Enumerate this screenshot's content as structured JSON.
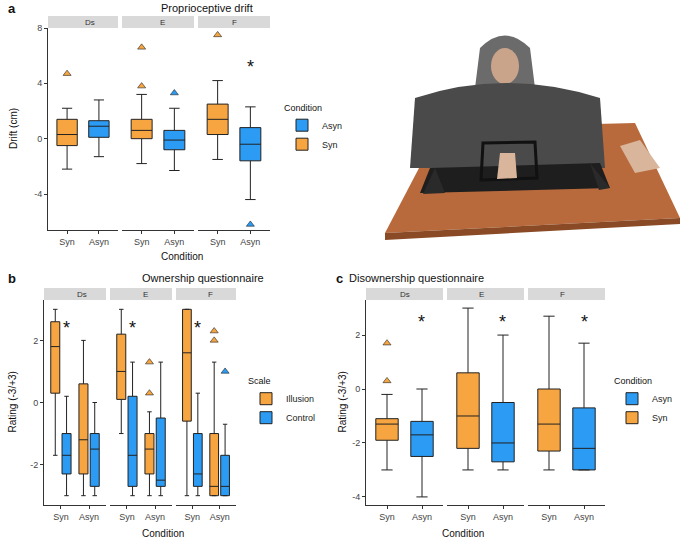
{
  "chart_data": [
    {
      "type": "box",
      "label": "a",
      "title": "Proprioceptive drift",
      "x_label": "Condition",
      "y_label": "Drift (cm)",
      "ylim": [
        -6.6,
        8
      ],
      "yticks": [
        -4,
        0,
        4,
        8
      ],
      "grid": false,
      "legend": "right",
      "legend_title": "Condition",
      "marker": "triangle-up",
      "series": [
        {
          "name": "Asyn",
          "color": "#2B9BF4"
        },
        {
          "name": "Syn",
          "color": "#F7A541"
        }
      ],
      "facets": [
        {
          "name": "Ds",
          "categories": [
            "Syn",
            "Asyn"
          ],
          "series": [
            {
              "name": "Asyn",
              "values": [
                null,
                {
                  "q1": 0.1,
                  "median": 0.9,
                  "q3": 1.3,
                  "lower": -1.3,
                  "upper": 2.8,
                  "outliers": []
                }
              ]
            },
            {
              "name": "Syn",
              "values": [
                {
                  "q1": -0.5,
                  "median": 0.3,
                  "q3": 1.4,
                  "lower": -2.2,
                  "upper": 2.2,
                  "outliers": [
                    4.7
                  ]
                },
                null
              ]
            }
          ],
          "annotations": []
        },
        {
          "name": "E",
          "categories": [
            "Syn",
            "Asyn"
          ],
          "series": [
            {
              "name": "Asyn",
              "values": [
                null,
                {
                  "q1": -0.8,
                  "median": -0.1,
                  "q3": 0.6,
                  "lower": -2.3,
                  "upper": 2.2,
                  "outliers": [
                    3.3
                  ]
                }
              ]
            },
            {
              "name": "Syn",
              "values": [
                {
                  "q1": 0,
                  "median": 0.6,
                  "q3": 1.4,
                  "lower": -1.8,
                  "upper": 3.2,
                  "outliers": [
                    3.8,
                    6.6
                  ]
                },
                null
              ]
            }
          ],
          "annotations": []
        },
        {
          "name": "F",
          "categories": [
            "Syn",
            "Asyn"
          ],
          "series": [
            {
              "name": "Asyn",
              "values": [
                null,
                {
                  "q1": -1.6,
                  "median": -0.4,
                  "q3": 0.8,
                  "lower": -4.4,
                  "upper": 2.3,
                  "outliers": [
                    -6.2
                  ]
                }
              ]
            },
            {
              "name": "Syn",
              "values": [
                {
                  "q1": 0.3,
                  "median": 1.4,
                  "q3": 2.5,
                  "lower": -1.5,
                  "upper": 4.2,
                  "outliers": [
                    7.5
                  ]
                },
                null
              ]
            }
          ],
          "annotations": [
            {
              "text": "*",
              "x": "Asyn",
              "y": 5.2
            }
          ]
        }
      ]
    },
    {
      "type": "box",
      "label": "b",
      "title": "Ownership questionnaire",
      "x_label": "Condition",
      "y_label": "Rating (-3/+3)",
      "ylim": [
        -3.3,
        3.3
      ],
      "yticks": [
        -2,
        0,
        2
      ],
      "grid": false,
      "legend": "right",
      "legend_title": "Scale",
      "marker": "triangle-up",
      "series": [
        {
          "name": "Illusion",
          "color": "#F7A541"
        },
        {
          "name": "Control",
          "color": "#2B9BF4"
        }
      ],
      "facets": [
        {
          "name": "Ds",
          "categories": [
            "Syn",
            "Asyn"
          ],
          "series": [
            {
              "name": "Illusion",
              "values": [
                {
                  "q1": 0.3,
                  "median": 1.8,
                  "q3": 2.6,
                  "lower": -1.7,
                  "upper": 3,
                  "outliers": []
                },
                {
                  "q1": -2.3,
                  "median": -1.2,
                  "q3": 0.6,
                  "lower": -3,
                  "upper": 2,
                  "outliers": []
                }
              ]
            },
            {
              "name": "Control",
              "values": [
                {
                  "q1": -2.3,
                  "median": -1.7,
                  "q3": -1,
                  "lower": -3,
                  "upper": 0.2,
                  "outliers": []
                },
                {
                  "q1": -2.7,
                  "median": -1.5,
                  "q3": -1,
                  "lower": -3,
                  "upper": 0,
                  "outliers": []
                }
              ]
            }
          ],
          "annotations": [
            {
              "text": "*",
              "x": "Syn",
              "series": "Control",
              "y": 2.4
            }
          ]
        },
        {
          "name": "E",
          "categories": [
            "Syn",
            "Asyn"
          ],
          "series": [
            {
              "name": "Illusion",
              "values": [
                {
                  "q1": 0.1,
                  "median": 1,
                  "q3": 2.2,
                  "lower": -1,
                  "upper": 3,
                  "outliers": []
                },
                {
                  "q1": -2.3,
                  "median": -1.5,
                  "q3": -1,
                  "lower": -3,
                  "upper": -0.3,
                  "outliers": [
                    1.3,
                    0.3
                  ]
                }
              ]
            },
            {
              "name": "Control",
              "values": [
                {
                  "q1": -2.7,
                  "median": -1.7,
                  "q3": 0.2,
                  "lower": -3,
                  "upper": 1.3,
                  "outliers": []
                },
                {
                  "q1": -2.7,
                  "median": -2.5,
                  "q3": -0.5,
                  "lower": -3,
                  "upper": 1.3,
                  "outliers": []
                }
              ]
            }
          ],
          "annotations": [
            {
              "text": "*",
              "x": "Syn",
              "series": "Control",
              "y": 2.4
            }
          ]
        },
        {
          "name": "F",
          "categories": [
            "Syn",
            "Asyn"
          ],
          "series": [
            {
              "name": "Illusion",
              "values": [
                {
                  "q1": -0.6,
                  "median": 1.6,
                  "q3": 3,
                  "lower": -3,
                  "upper": 3,
                  "outliers": []
                },
                {
                  "q1": -3,
                  "median": -2.7,
                  "q3": -1,
                  "lower": -3,
                  "upper": 1.3,
                  "outliers": [
                    2.3,
                    2
                  ]
                }
              ]
            },
            {
              "name": "Control",
              "values": [
                {
                  "q1": -2.7,
                  "median": -2.3,
                  "q3": -1,
                  "lower": -3,
                  "upper": 0.3,
                  "outliers": []
                },
                {
                  "q1": -3,
                  "median": -2.7,
                  "q3": -1.7,
                  "lower": -3,
                  "upper": -0.7,
                  "outliers": [
                    1
                  ]
                }
              ]
            }
          ],
          "annotations": [
            {
              "text": "*",
              "x": "Syn",
              "series": "Control",
              "y": 2.4
            }
          ]
        }
      ]
    },
    {
      "type": "box",
      "label": "c",
      "title": "Disownership questionnaire",
      "x_label": "Condition",
      "y_label": "Rating (-3/+3)",
      "ylim": [
        -4.3,
        3.3
      ],
      "yticks": [
        -4,
        -2,
        0,
        2
      ],
      "grid": false,
      "legend": "right",
      "legend_title": "Condition",
      "marker": "triangle-up",
      "series": [
        {
          "name": "Asyn",
          "color": "#2B9BF4"
        },
        {
          "name": "Syn",
          "color": "#F7A541"
        }
      ],
      "facets": [
        {
          "name": "Ds",
          "categories": [
            "Syn",
            "Asyn"
          ],
          "series": [
            {
              "name": "Asyn",
              "values": [
                null,
                {
                  "q1": -2.5,
                  "median": -1.7,
                  "q3": -1.2,
                  "lower": -4,
                  "upper": 0,
                  "outliers": []
                }
              ]
            },
            {
              "name": "Syn",
              "values": [
                {
                  "q1": -1.9,
                  "median": -1.3,
                  "q3": -1.1,
                  "lower": -3,
                  "upper": -0.2,
                  "outliers": [
                    1.7,
                    0.3
                  ]
                },
                null
              ]
            }
          ],
          "annotations": [
            {
              "text": "*",
              "x": "Asyn",
              "y": 2.5
            }
          ]
        },
        {
          "name": "E",
          "categories": [
            "Syn",
            "Asyn"
          ],
          "series": [
            {
              "name": "Asyn",
              "values": [
                null,
                {
                  "q1": -2.7,
                  "median": -2,
                  "q3": -0.5,
                  "lower": -3,
                  "upper": 2,
                  "outliers": []
                }
              ]
            },
            {
              "name": "Syn",
              "values": [
                {
                  "q1": -2.2,
                  "median": -1,
                  "q3": 0.6,
                  "lower": -3,
                  "upper": 3,
                  "outliers": []
                },
                null
              ]
            }
          ],
          "annotations": [
            {
              "text": "*",
              "x": "Asyn",
              "y": 2.5
            }
          ]
        },
        {
          "name": "F",
          "categories": [
            "Syn",
            "Asyn"
          ],
          "series": [
            {
              "name": "Asyn",
              "values": [
                null,
                {
                  "q1": -3,
                  "median": -2.2,
                  "q3": -0.7,
                  "lower": -3,
                  "upper": 1.7,
                  "outliers": []
                }
              ]
            },
            {
              "name": "Syn",
              "values": [
                {
                  "q1": -2.3,
                  "median": -1.3,
                  "q3": 0,
                  "lower": -3,
                  "upper": 2.7,
                  "outliers": []
                },
                null
              ]
            }
          ],
          "annotations": [
            {
              "text": "*",
              "x": "Asyn",
              "y": 2.5
            }
          ]
        }
      ]
    }
  ]
}
